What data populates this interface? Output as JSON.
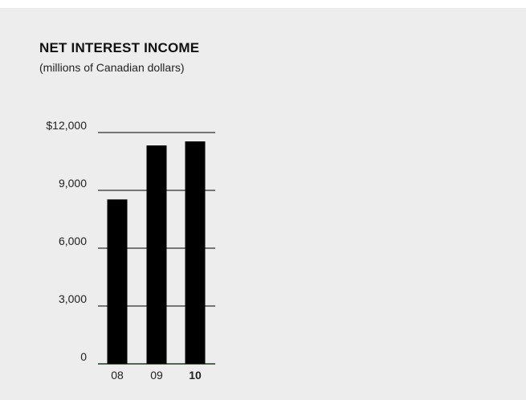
{
  "chart_data": {
    "type": "bar",
    "title": "NET INTEREST INCOME",
    "subtitle": "(millions of Canadian dollars)",
    "categories": [
      "08",
      "09",
      "10"
    ],
    "values": [
      8530,
      11330,
      11540
    ],
    "highlight_category": "10",
    "xlabel": "",
    "ylabel": "",
    "ylim": [
      0,
      12000
    ],
    "yticks": [
      0,
      3000,
      6000,
      9000,
      12000
    ],
    "ytick_labels": [
      "0",
      "3,000",
      "6,000",
      "9,000",
      "$12,000"
    ],
    "grid": true,
    "bar_color": "#000000",
    "background_color": "#ededed"
  }
}
